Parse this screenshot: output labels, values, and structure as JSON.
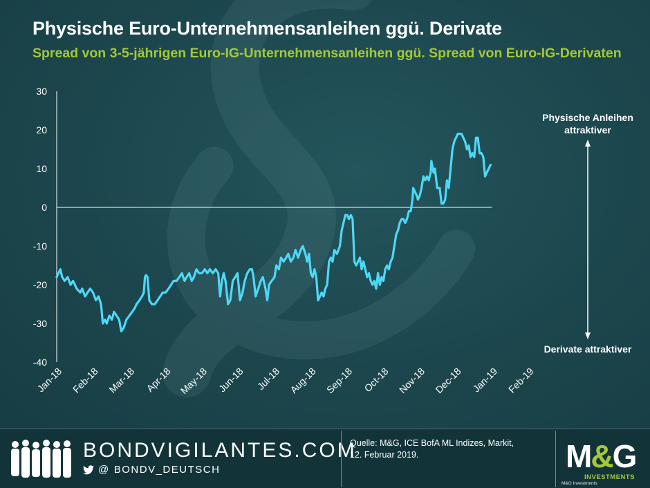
{
  "header": {
    "title": "Physische Euro-Unternehmensanleihen ggü. Derivate",
    "subtitle": "Spread von 3-5-jährigen Euro-IG-Unternehmensanleihen ggü. Spread von Euro-IG-Derivaten"
  },
  "chart_data": {
    "type": "line",
    "title": "Physische Euro-Unternehmensanleihen ggü. Derivate",
    "subtitle": "Spread von 3-5-jährigen Euro-IG-Unternehmensanleihen ggü. Spread von Euro-IG-Derivaten",
    "xlabel": "",
    "ylabel": "",
    "ylim": [
      -40,
      30
    ],
    "yticks": [
      30,
      20,
      10,
      0,
      -10,
      -20,
      -30,
      -40
    ],
    "xticks": [
      "Jan-18",
      "Feb-18",
      "Mar-18",
      "Apr-18",
      "May-18",
      "Jun-18",
      "Jul-18",
      "Aug-18",
      "Sep-18",
      "Oct-18",
      "Nov-18",
      "Dec-18",
      "Jan-19",
      "Feb-19"
    ],
    "x_range_months": [
      0,
      13.42
    ],
    "grid": false,
    "line_color": "#4ed8f7",
    "axis_color": "#ffffff",
    "series": [
      {
        "points": [
          [
            0.0,
            -18
          ],
          [
            0.05,
            -17
          ],
          [
            0.1,
            -16
          ],
          [
            0.15,
            -18
          ],
          [
            0.22,
            -19
          ],
          [
            0.3,
            -18
          ],
          [
            0.38,
            -20
          ],
          [
            0.45,
            -19
          ],
          [
            0.55,
            -21
          ],
          [
            0.65,
            -22
          ],
          [
            0.7,
            -21
          ],
          [
            0.78,
            -23
          ],
          [
            0.85,
            -22
          ],
          [
            0.92,
            -21
          ],
          [
            1.0,
            -22
          ],
          [
            1.08,
            -24
          ],
          [
            1.15,
            -23
          ],
          [
            1.22,
            -25
          ],
          [
            1.27,
            -30
          ],
          [
            1.33,
            -29
          ],
          [
            1.38,
            -30
          ],
          [
            1.45,
            -28
          ],
          [
            1.52,
            -29
          ],
          [
            1.58,
            -27
          ],
          [
            1.65,
            -28
          ],
          [
            1.72,
            -29
          ],
          [
            1.78,
            -32
          ],
          [
            1.85,
            -31
          ],
          [
            1.92,
            -29
          ],
          [
            2.0,
            -28
          ],
          [
            2.08,
            -27
          ],
          [
            2.15,
            -26
          ],
          [
            2.2,
            -25
          ],
          [
            2.28,
            -24
          ],
          [
            2.35,
            -23
          ],
          [
            2.4,
            -22
          ],
          [
            2.43,
            -18
          ],
          [
            2.46,
            -17.5
          ],
          [
            2.5,
            -18
          ],
          [
            2.55,
            -24
          ],
          [
            2.62,
            -25
          ],
          [
            2.7,
            -25
          ],
          [
            2.78,
            -24
          ],
          [
            2.85,
            -23
          ],
          [
            2.92,
            -22
          ],
          [
            3.0,
            -22
          ],
          [
            3.08,
            -21
          ],
          [
            3.15,
            -20
          ],
          [
            3.22,
            -19
          ],
          [
            3.3,
            -19
          ],
          [
            3.38,
            -18
          ],
          [
            3.45,
            -17
          ],
          [
            3.52,
            -19
          ],
          [
            3.58,
            -18
          ],
          [
            3.65,
            -17
          ],
          [
            3.72,
            -19
          ],
          [
            3.78,
            -18
          ],
          [
            3.85,
            -16
          ],
          [
            3.92,
            -17
          ],
          [
            4.0,
            -17
          ],
          [
            4.08,
            -16
          ],
          [
            4.15,
            -17
          ],
          [
            4.22,
            -16
          ],
          [
            4.3,
            -17
          ],
          [
            4.38,
            -16
          ],
          [
            4.45,
            -17
          ],
          [
            4.5,
            -23
          ],
          [
            4.55,
            -19
          ],
          [
            4.6,
            -17
          ],
          [
            4.65,
            -19
          ],
          [
            4.72,
            -25
          ],
          [
            4.78,
            -24
          ],
          [
            4.85,
            -19
          ],
          [
            4.92,
            -18
          ],
          [
            4.98,
            -17
          ],
          [
            5.05,
            -24
          ],
          [
            5.12,
            -22
          ],
          [
            5.18,
            -19
          ],
          [
            5.25,
            -17
          ],
          [
            5.32,
            -16
          ],
          [
            5.38,
            -16
          ],
          [
            5.42,
            -18
          ],
          [
            5.48,
            -23
          ],
          [
            5.55,
            -21
          ],
          [
            5.62,
            -19
          ],
          [
            5.68,
            -18
          ],
          [
            5.75,
            -21
          ],
          [
            5.8,
            -24
          ],
          [
            5.85,
            -20
          ],
          [
            5.92,
            -19
          ],
          [
            6.0,
            -18
          ],
          [
            6.05,
            -15
          ],
          [
            6.12,
            -16
          ],
          [
            6.18,
            -13
          ],
          [
            6.25,
            -14
          ],
          [
            6.32,
            -13
          ],
          [
            6.38,
            -12
          ],
          [
            6.45,
            -14
          ],
          [
            6.52,
            -13
          ],
          [
            6.58,
            -11
          ],
          [
            6.65,
            -13
          ],
          [
            6.72,
            -11
          ],
          [
            6.78,
            -10
          ],
          [
            6.85,
            -12
          ],
          [
            6.9,
            -14
          ],
          [
            6.95,
            -12
          ],
          [
            7.0,
            -17
          ],
          [
            7.05,
            -18
          ],
          [
            7.1,
            -16
          ],
          [
            7.15,
            -18
          ],
          [
            7.2,
            -24
          ],
          [
            7.25,
            -23
          ],
          [
            7.3,
            -22
          ],
          [
            7.35,
            -23
          ],
          [
            7.4,
            -21
          ],
          [
            7.45,
            -20
          ],
          [
            7.5,
            -14
          ],
          [
            7.55,
            -13
          ],
          [
            7.6,
            -14
          ],
          [
            7.65,
            -11
          ],
          [
            7.72,
            -12
          ],
          [
            7.8,
            -10
          ],
          [
            7.85,
            -6
          ],
          [
            7.9,
            -4
          ],
          [
            7.95,
            -2
          ],
          [
            8.0,
            -2
          ],
          [
            8.05,
            -3
          ],
          [
            8.1,
            -2
          ],
          [
            8.15,
            -3
          ],
          [
            8.2,
            -14
          ],
          [
            8.25,
            -15
          ],
          [
            8.3,
            -14
          ],
          [
            8.35,
            -13
          ],
          [
            8.4,
            -16
          ],
          [
            8.45,
            -14
          ],
          [
            8.5,
            -16
          ],
          [
            8.55,
            -18
          ],
          [
            8.6,
            -17
          ],
          [
            8.65,
            -19
          ],
          [
            8.7,
            -20
          ],
          [
            8.75,
            -19
          ],
          [
            8.8,
            -21
          ],
          [
            8.85,
            -17
          ],
          [
            8.9,
            -20
          ],
          [
            8.95,
            -18
          ],
          [
            9.0,
            -19
          ],
          [
            9.05,
            -16
          ],
          [
            9.1,
            -15
          ],
          [
            9.15,
            -16
          ],
          [
            9.2,
            -14
          ],
          [
            9.25,
            -13
          ],
          [
            9.3,
            -10
          ],
          [
            9.35,
            -7
          ],
          [
            9.4,
            -6
          ],
          [
            9.45,
            -4
          ],
          [
            9.5,
            -3
          ],
          [
            9.55,
            -3
          ],
          [
            9.6,
            -4
          ],
          [
            9.65,
            -3
          ],
          [
            9.7,
            -1
          ],
          [
            9.75,
            -1
          ],
          [
            9.8,
            2
          ],
          [
            9.82,
            5
          ],
          [
            9.87,
            4
          ],
          [
            9.92,
            3
          ],
          [
            9.95,
            2
          ],
          [
            10.0,
            3
          ],
          [
            10.05,
            5
          ],
          [
            10.1,
            8
          ],
          [
            10.15,
            7
          ],
          [
            10.2,
            8
          ],
          [
            10.25,
            7
          ],
          [
            10.3,
            9
          ],
          [
            10.32,
            12
          ],
          [
            10.38,
            9
          ],
          [
            10.42,
            10
          ],
          [
            10.48,
            5
          ],
          [
            10.55,
            5
          ],
          [
            10.6,
            1
          ],
          [
            10.65,
            1
          ],
          [
            10.7,
            2
          ],
          [
            10.75,
            7
          ],
          [
            10.8,
            5
          ],
          [
            10.85,
            10
          ],
          [
            10.9,
            15
          ],
          [
            10.95,
            17
          ],
          [
            11.0,
            18
          ],
          [
            11.05,
            19
          ],
          [
            11.15,
            19
          ],
          [
            11.2,
            18
          ],
          [
            11.25,
            17
          ],
          [
            11.3,
            15
          ],
          [
            11.35,
            16
          ],
          [
            11.4,
            13
          ],
          [
            11.45,
            14
          ],
          [
            11.5,
            13
          ],
          [
            11.55,
            18
          ],
          [
            11.6,
            18
          ],
          [
            11.65,
            14
          ],
          [
            11.7,
            14
          ],
          [
            11.75,
            13
          ],
          [
            11.8,
            8
          ],
          [
            11.85,
            9
          ],
          [
            11.9,
            10
          ],
          [
            11.95,
            11
          ]
        ]
      }
    ],
    "annotations": {
      "top_line1": "Physische Anleihen",
      "top_line2": "attraktiver",
      "bottom": "Derivate attraktiver"
    }
  },
  "footer": {
    "brand": "BONDVIGILANTES.COM",
    "handle_prefix": "@",
    "handle": "BONDV_DEUTSCH",
    "source_line1": "Quelle: M&G, ICE BofA ML Indizes, Markit,",
    "source_line2": "12. Februar 2019.",
    "logo_m": "M",
    "logo_amp": "&",
    "logo_g": "G",
    "logo_sub": "INVESTMENTS",
    "logo_small": "M&G Investments"
  },
  "icons": {
    "people": "people-silhouette-icon",
    "twitter": "twitter-bird-icon",
    "watermark": "ampersand-watermark-icon"
  }
}
